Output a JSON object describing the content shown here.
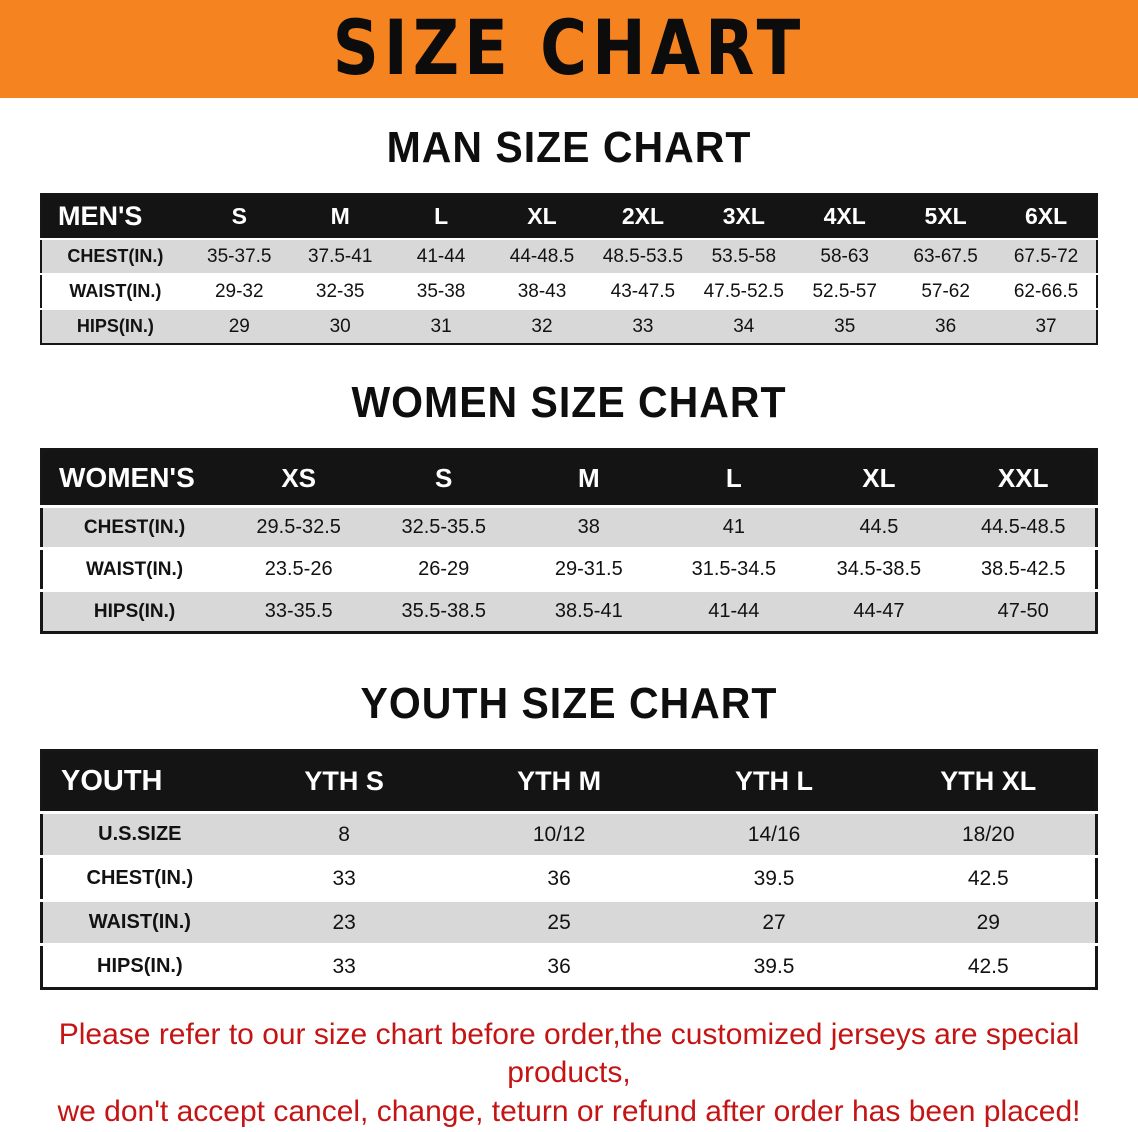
{
  "banner": {
    "title": "SIZE CHART"
  },
  "sections": [
    {
      "key": "men",
      "heading": "MAN SIZE CHART",
      "table": {
        "label": "MEN'S",
        "columns": [
          "S",
          "M",
          "L",
          "XL",
          "2XL",
          "3XL",
          "4XL",
          "5XL",
          "6XL"
        ],
        "rows": [
          {
            "label": "CHEST(IN.)",
            "values": [
              "35-37.5",
              "37.5-41",
              "41-44",
              "44-48.5",
              "48.5-53.5",
              "53.5-58",
              "58-63",
              "63-67.5",
              "67.5-72"
            ]
          },
          {
            "label": "WAIST(IN.)",
            "values": [
              "29-32",
              "32-35",
              "35-38",
              "38-43",
              "43-47.5",
              "47.5-52.5",
              "52.5-57",
              "57-62",
              "62-66.5"
            ]
          },
          {
            "label": "HIPS(IN.)",
            "values": [
              "29",
              "30",
              "31",
              "32",
              "33",
              "34",
              "35",
              "36",
              "37"
            ]
          }
        ]
      }
    },
    {
      "key": "women",
      "heading": "WOMEN SIZE CHART",
      "table": {
        "label": "WOMEN'S",
        "columns": [
          "XS",
          "S",
          "M",
          "L",
          "XL",
          "XXL"
        ],
        "rows": [
          {
            "label": "CHEST(IN.)",
            "values": [
              "29.5-32.5",
              "32.5-35.5",
              "38",
              "41",
              "44.5",
              "44.5-48.5"
            ]
          },
          {
            "label": "WAIST(IN.)",
            "values": [
              "23.5-26",
              "26-29",
              "29-31.5",
              "31.5-34.5",
              "34.5-38.5",
              "38.5-42.5"
            ]
          },
          {
            "label": "HIPS(IN.)",
            "values": [
              "33-35.5",
              "35.5-38.5",
              "38.5-41",
              "41-44",
              "44-47",
              "47-50"
            ]
          }
        ]
      }
    },
    {
      "key": "youth",
      "heading": "YOUTH SIZE CHART",
      "table": {
        "label": "YOUTH",
        "columns": [
          "YTH S",
          "YTH M",
          "YTH L",
          "YTH XL"
        ],
        "rows": [
          {
            "label": "U.S.SIZE",
            "values": [
              "8",
              "10/12",
              "14/16",
              "18/20"
            ]
          },
          {
            "label": "CHEST(IN.)",
            "values": [
              "33",
              "36",
              "39.5",
              "42.5"
            ]
          },
          {
            "label": "WAIST(IN.)",
            "values": [
              "23",
              "25",
              "27",
              "29"
            ]
          },
          {
            "label": "HIPS(IN.)",
            "values": [
              "33",
              "36",
              "39.5",
              "42.5"
            ]
          }
        ]
      }
    }
  ],
  "footer": {
    "line1": "Please refer to our size chart before order,the customized jerseys are special products,",
    "line2": "we don't accept cancel, change, teturn or refund after order has been placed!"
  },
  "colors": {
    "banner_bg": "#F5831F",
    "header_bg": "#141414",
    "row_alt_bg": "#D8D8D8",
    "note_red": "#C41414"
  }
}
